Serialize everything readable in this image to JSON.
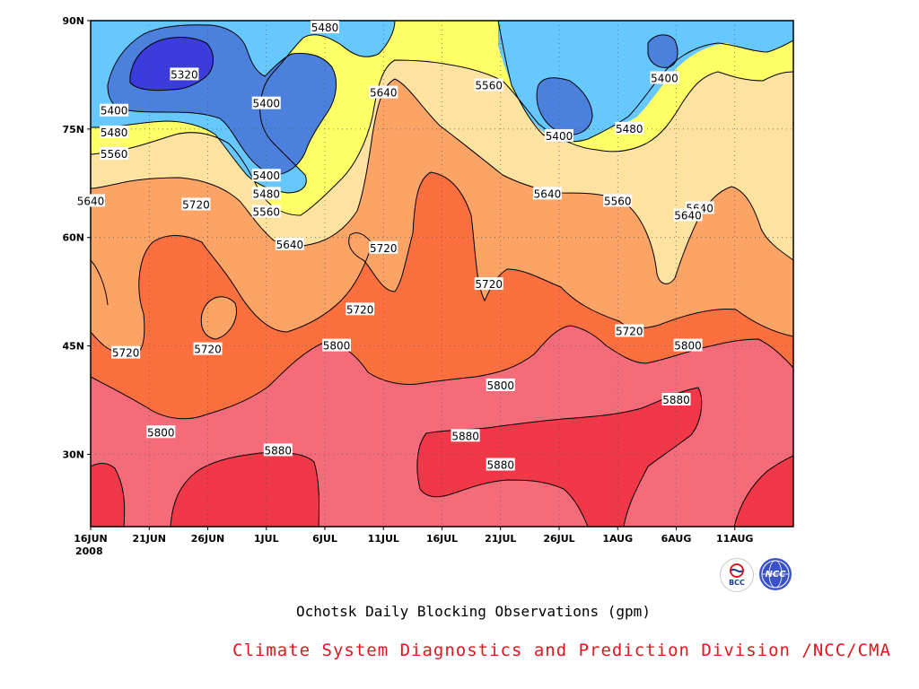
{
  "chart_data": {
    "type": "heatmap",
    "title": "Ochotsk Daily Blocking Observations (gpm)",
    "x_ticks": [
      "16JUN",
      "21JUN",
      "26JUN",
      "1JUL",
      "6JUL",
      "11JUL",
      "16JUL",
      "21JUL",
      "26JUL",
      "1AUG",
      "6AUG",
      "11AUG"
    ],
    "x_year_label": "2008",
    "y_ticks": [
      "30N",
      "45N",
      "60N",
      "75N",
      "90N"
    ],
    "y_tick_values": [
      30,
      45,
      60,
      75,
      90
    ],
    "xlim": [
      "2008-06-16",
      "2008-08-15"
    ],
    "ylim": [
      20,
      90
    ],
    "grid": true,
    "contour_levels": [
      5320,
      5400,
      5480,
      5560,
      5640,
      5720,
      5800,
      5880
    ],
    "level_colors": [
      "#3c3cdc",
      "#4b80dc",
      "#66c8ff",
      "#ffff66",
      "#fde2a0",
      "#fca465",
      "#fc7040",
      "#f46c7a",
      "#f03848"
    ],
    "contour_labels": [
      {
        "text": "5480",
        "date": "2008-07-06",
        "lat": 89
      },
      {
        "text": "5320",
        "date": "2008-06-24",
        "lat": 82.5
      },
      {
        "text": "5400",
        "date": "2008-07-01",
        "lat": 78.5
      },
      {
        "text": "5640",
        "date": "2008-07-11",
        "lat": 80
      },
      {
        "text": "5560",
        "date": "2008-07-20",
        "lat": 81
      },
      {
        "text": "5400",
        "date": "2008-08-04",
        "lat": 82
      },
      {
        "text": "5400",
        "date": "2008-06-18",
        "lat": 77.5
      },
      {
        "text": "5480",
        "date": "2008-06-18",
        "lat": 74.5
      },
      {
        "text": "5560",
        "date": "2008-06-18",
        "lat": 71.5
      },
      {
        "text": "5400",
        "date": "2008-07-26",
        "lat": 74
      },
      {
        "text": "5480",
        "date": "2008-08-01",
        "lat": 75
      },
      {
        "text": "5400",
        "date": "2008-07-01",
        "lat": 68.5
      },
      {
        "text": "5480",
        "date": "2008-07-01",
        "lat": 66
      },
      {
        "text": "5560",
        "date": "2008-07-01",
        "lat": 63.5
      },
      {
        "text": "5640",
        "date": "2008-06-16",
        "lat": 65
      },
      {
        "text": "5720",
        "date": "2008-06-25",
        "lat": 64.5
      },
      {
        "text": "5640",
        "date": "2008-07-25",
        "lat": 66
      },
      {
        "text": "5560",
        "date": "2008-07-31",
        "lat": 65
      },
      {
        "text": "5640",
        "date": "2008-08-07",
        "lat": 64
      },
      {
        "text": "5640",
        "date": "2008-08-06",
        "lat": 63
      },
      {
        "text": "5640",
        "date": "2008-07-03",
        "lat": 59
      },
      {
        "text": "5720",
        "date": "2008-07-11",
        "lat": 58.5
      },
      {
        "text": "5720",
        "date": "2008-07-20",
        "lat": 53.5
      },
      {
        "text": "5720",
        "date": "2008-07-09",
        "lat": 50
      },
      {
        "text": "5720",
        "date": "2008-06-19",
        "lat": 44
      },
      {
        "text": "5720",
        "date": "2008-06-26",
        "lat": 44.5
      },
      {
        "text": "5800",
        "date": "2008-07-07",
        "lat": 45
      },
      {
        "text": "5720",
        "date": "2008-08-01",
        "lat": 47
      },
      {
        "text": "5800",
        "date": "2008-08-06",
        "lat": 45
      },
      {
        "text": "5800",
        "date": "2008-07-21",
        "lat": 39.5
      },
      {
        "text": "5880",
        "date": "2008-08-05",
        "lat": 37.5
      },
      {
        "text": "5800",
        "date": "2008-06-22",
        "lat": 33
      },
      {
        "text": "5880",
        "date": "2008-07-02",
        "lat": 30.5
      },
      {
        "text": "5880",
        "date": "2008-07-18",
        "lat": 32.5
      },
      {
        "text": "5880",
        "date": "2008-07-21",
        "lat": 28.5
      }
    ]
  },
  "footer": {
    "credit": "Climate System Diagnostics and Prediction Division /NCC/CMA"
  },
  "logos": {
    "bcc": "BCC",
    "ncc": "NCC"
  }
}
